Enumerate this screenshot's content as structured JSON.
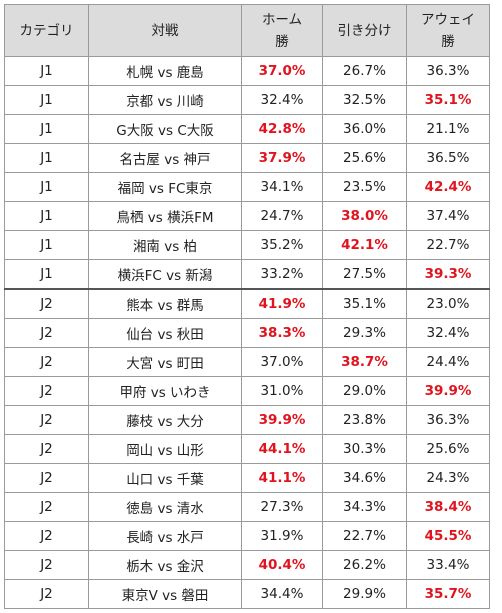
{
  "headers": {
    "category": "カテゴリ",
    "match": "対戦",
    "home_line1": "ホーム",
    "home_line2": "勝",
    "draw": "引き分け",
    "away_line1": "アウェイ",
    "away_line2": "勝"
  },
  "highlight_color": "#e0141e",
  "rows": [
    {
      "category": "J1",
      "match": "札幌 vs 鹿島",
      "home": "37.0%",
      "draw": "26.7%",
      "away": "36.3%",
      "hi": "home"
    },
    {
      "category": "J1",
      "match": "京都 vs 川崎",
      "home": "32.4%",
      "draw": "32.5%",
      "away": "35.1%",
      "hi": "away"
    },
    {
      "category": "J1",
      "match": "G大阪 vs C大阪",
      "home": "42.8%",
      "draw": "36.0%",
      "away": "21.1%",
      "hi": "home"
    },
    {
      "category": "J1",
      "match": "名古屋 vs 神戸",
      "home": "37.9%",
      "draw": "25.6%",
      "away": "36.5%",
      "hi": "home"
    },
    {
      "category": "J1",
      "match": "福岡 vs FC東京",
      "home": "34.1%",
      "draw": "23.5%",
      "away": "42.4%",
      "hi": "away"
    },
    {
      "category": "J1",
      "match": "鳥栖 vs 横浜FM",
      "home": "24.7%",
      "draw": "38.0%",
      "away": "37.4%",
      "hi": "draw"
    },
    {
      "category": "J1",
      "match": "湘南 vs 柏",
      "home": "35.2%",
      "draw": "42.1%",
      "away": "22.7%",
      "hi": "draw"
    },
    {
      "category": "J1",
      "match": "横浜FC vs 新潟",
      "home": "33.2%",
      "draw": "27.5%",
      "away": "39.3%",
      "hi": "away"
    },
    {
      "category": "J2",
      "match": "熊本 vs 群馬",
      "home": "41.9%",
      "draw": "35.1%",
      "away": "23.0%",
      "hi": "home"
    },
    {
      "category": "J2",
      "match": "仙台 vs 秋田",
      "home": "38.3%",
      "draw": "29.3%",
      "away": "32.4%",
      "hi": "home"
    },
    {
      "category": "J2",
      "match": "大宮 vs 町田",
      "home": "37.0%",
      "draw": "38.7%",
      "away": "24.4%",
      "hi": "draw"
    },
    {
      "category": "J2",
      "match": "甲府 vs いわき",
      "home": "31.0%",
      "draw": "29.0%",
      "away": "39.9%",
      "hi": "away"
    },
    {
      "category": "J2",
      "match": "藤枝 vs 大分",
      "home": "39.9%",
      "draw": "23.8%",
      "away": "36.3%",
      "hi": "home"
    },
    {
      "category": "J2",
      "match": "岡山 vs 山形",
      "home": "44.1%",
      "draw": "30.3%",
      "away": "25.6%",
      "hi": "home"
    },
    {
      "category": "J2",
      "match": "山口 vs 千葉",
      "home": "41.1%",
      "draw": "34.6%",
      "away": "24.3%",
      "hi": "home"
    },
    {
      "category": "J2",
      "match": "徳島 vs 清水",
      "home": "27.3%",
      "draw": "34.3%",
      "away": "38.4%",
      "hi": "away"
    },
    {
      "category": "J2",
      "match": "長崎 vs 水戸",
      "home": "31.9%",
      "draw": "22.7%",
      "away": "45.5%",
      "hi": "away"
    },
    {
      "category": "J2",
      "match": "栃木 vs 金沢",
      "home": "40.4%",
      "draw": "26.2%",
      "away": "33.4%",
      "hi": "home"
    },
    {
      "category": "J2",
      "match": "東京V vs 磐田",
      "home": "34.4%",
      "draw": "29.9%",
      "away": "35.7%",
      "hi": "away"
    }
  ]
}
